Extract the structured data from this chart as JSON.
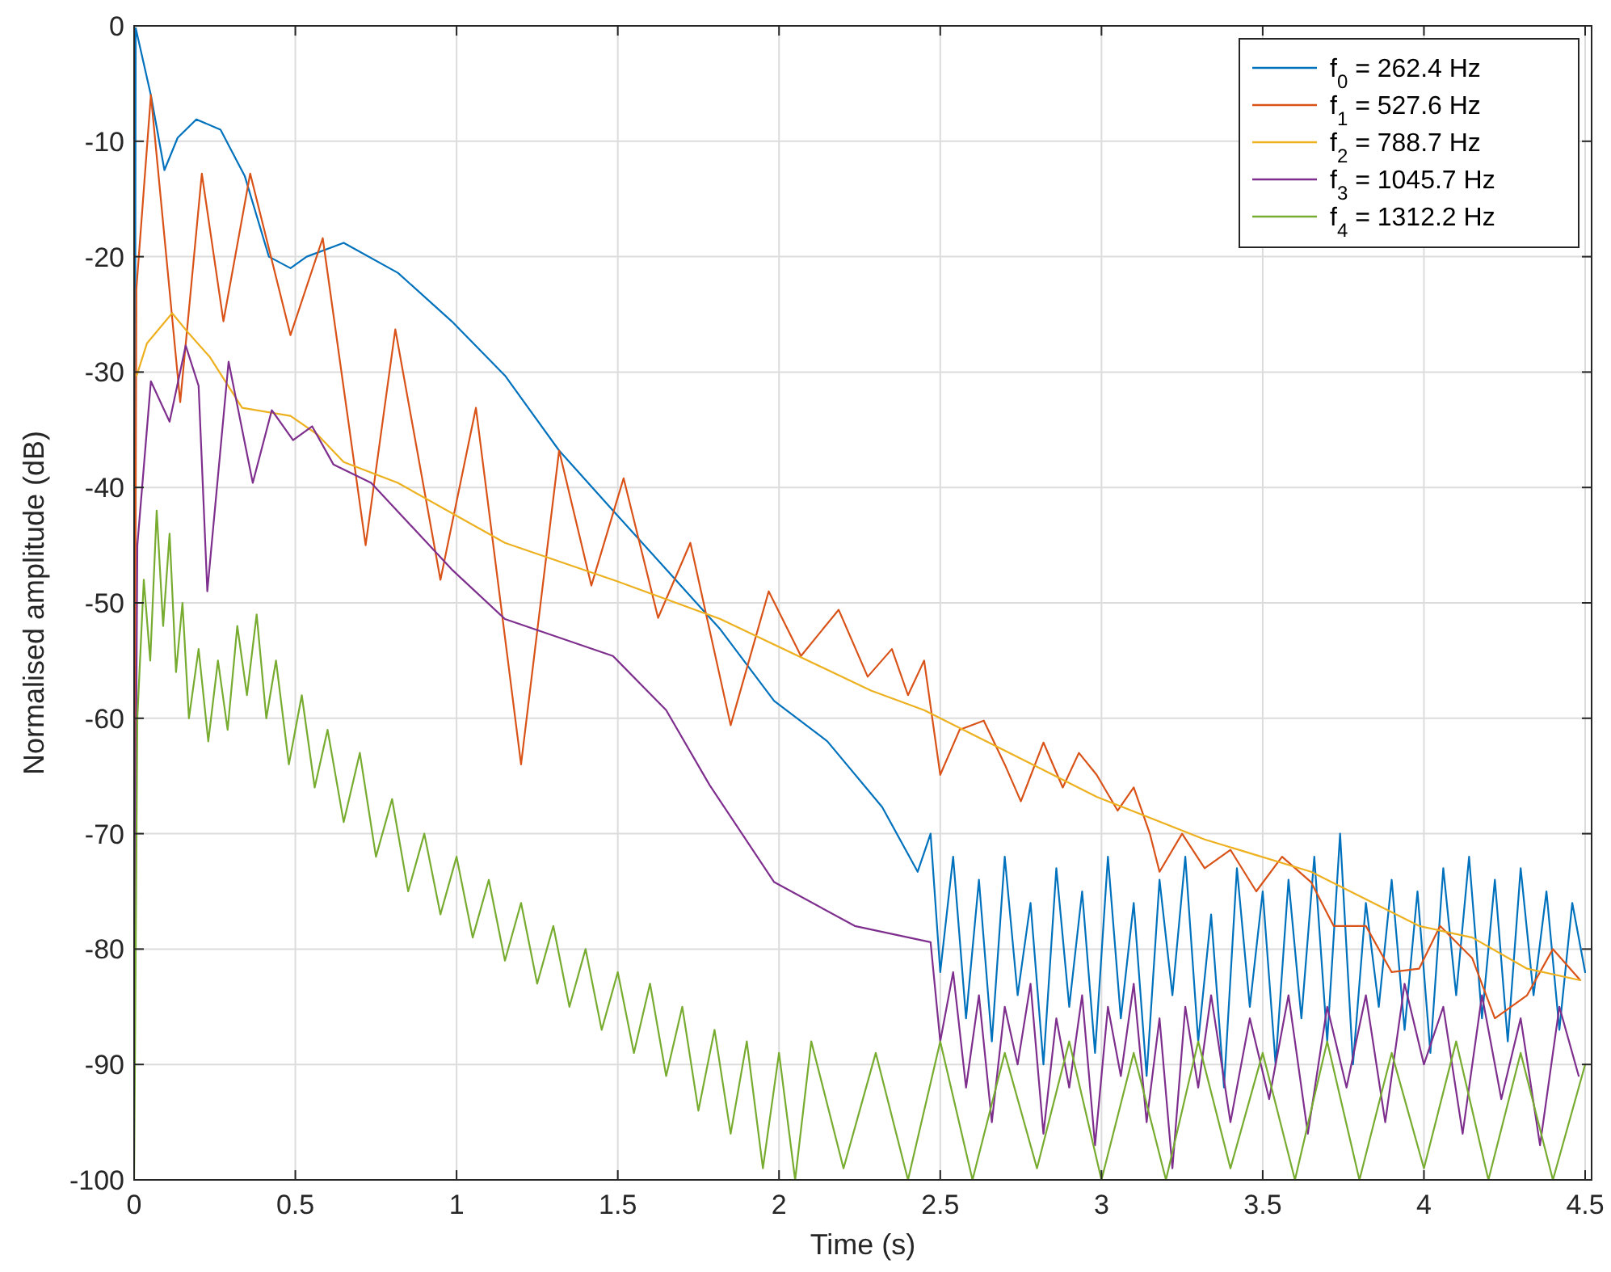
{
  "chart_data": {
    "type": "line",
    "xlabel": "Time (s)",
    "ylabel": "Normalised amplitude (dB)",
    "xlim": [
      0,
      4.52
    ],
    "ylim": [
      -100,
      0
    ],
    "xticks": [
      0,
      0.5,
      1,
      1.5,
      2,
      2.5,
      3,
      3.5,
      4,
      4.5
    ],
    "yticks": [
      -100,
      -90,
      -80,
      -70,
      -60,
      -50,
      -40,
      -30,
      -20,
      -10,
      0
    ],
    "grid": true,
    "legend": "top right",
    "marker": "none",
    "line_style": "solid",
    "series": [
      {
        "name": "f$_{0}$ = 262.4 Hz",
        "color": "#0072bd",
        "x": [
          0,
          0.005,
          0.052,
          0.094,
          0.135,
          0.193,
          0.268,
          0.343,
          0.418,
          0.485,
          0.535,
          0.65,
          0.818,
          0.985,
          1.15,
          1.318,
          1.485,
          1.65,
          1.818,
          1.985,
          2.15,
          2.32,
          2.43,
          2.47,
          2.5,
          2.54,
          2.58,
          2.62,
          2.66,
          2.7,
          2.74,
          2.78,
          2.82,
          2.86,
          2.9,
          2.94,
          2.98,
          3.02,
          3.06,
          3.1,
          3.14,
          3.18,
          3.22,
          3.26,
          3.3,
          3.34,
          3.38,
          3.42,
          3.46,
          3.5,
          3.54,
          3.58,
          3.62,
          3.66,
          3.7,
          3.74,
          3.78,
          3.82,
          3.86,
          3.9,
          3.94,
          3.98,
          4.02,
          4.06,
          4.1,
          4.14,
          4.18,
          4.22,
          4.26,
          4.3,
          4.34,
          4.38,
          4.42,
          4.46,
          4.5
        ],
        "values": [
          -80,
          -0.2,
          -6,
          -12.5,
          -9.7,
          -8.1,
          -9,
          -13,
          -20,
          -21,
          -20,
          -18.8,
          -21.4,
          -25.6,
          -30.3,
          -36.8,
          -42,
          -47.1,
          -52.3,
          -58.5,
          -62,
          -67.7,
          -73.3,
          -70,
          -82,
          -72,
          -86,
          -74,
          -88,
          -72,
          -84,
          -76,
          -90,
          -73,
          -85,
          -75,
          -89,
          -72,
          -86,
          -76,
          -91,
          -74,
          -84,
          -72,
          -88,
          -77,
          -92,
          -73,
          -85,
          -75,
          -90,
          -74,
          -86,
          -72,
          -88,
          -70,
          -90,
          -76,
          -85,
          -74,
          -87,
          -75,
          -89,
          -73,
          -84,
          -72,
          -86,
          -74,
          -88,
          -73,
          -84,
          -75,
          -87,
          -76,
          -82
        ]
      },
      {
        "name": "f$_{1}$ = 527.6 Hz",
        "color": "#d95319",
        "x": [
          0,
          0.007,
          0.052,
          0.143,
          0.21,
          0.277,
          0.36,
          0.485,
          0.585,
          0.718,
          0.81,
          0.95,
          1.06,
          1.2,
          1.318,
          1.418,
          1.518,
          1.625,
          1.725,
          1.85,
          1.968,
          2.068,
          2.185,
          2.275,
          2.35,
          2.4,
          2.45,
          2.5,
          2.56,
          2.635,
          2.7,
          2.75,
          2.82,
          2.88,
          2.93,
          2.985,
          3.05,
          3.1,
          3.15,
          3.18,
          3.25,
          3.32,
          3.4,
          3.48,
          3.56,
          3.65,
          3.72,
          3.82,
          3.9,
          3.985,
          4.05,
          4.15,
          4.22,
          4.32,
          4.4,
          4.485
        ],
        "values": [
          -85,
          -22.8,
          -6,
          -32.6,
          -12.8,
          -25.6,
          -12.8,
          -26.8,
          -18.4,
          -45,
          -26.3,
          -48,
          -33.1,
          -64,
          -36.8,
          -48.5,
          -39.2,
          -51.3,
          -44.8,
          -60.6,
          -49,
          -54.6,
          -50.6,
          -56.4,
          -54,
          -58,
          -55,
          -64.9,
          -61,
          -60.2,
          -64,
          -67.2,
          -62.1,
          -66,
          -63,
          -64.9,
          -68,
          -66,
          -70,
          -73.3,
          -70,
          -73,
          -71.4,
          -75,
          -72,
          -74.2,
          -78,
          -78,
          -82,
          -81.7,
          -78,
          -80.8,
          -86,
          -84,
          -80,
          -82.7
        ]
      },
      {
        "name": "f$_{2}$ = 788.7 Hz",
        "color": "#edb120",
        "x": [
          0.008,
          0.04,
          0.118,
          0.168,
          0.235,
          0.335,
          0.485,
          0.568,
          0.65,
          0.818,
          1.15,
          1.485,
          1.818,
          2.285,
          2.45,
          2.985,
          3.32,
          3.65,
          3.985,
          4.15,
          4.32,
          4.485
        ],
        "values": [
          -30.3,
          -27.5,
          -24.9,
          -26.6,
          -28.7,
          -33.1,
          -33.8,
          -35.4,
          -37.8,
          -39.6,
          -44.8,
          -48,
          -51.4,
          -57.6,
          -59.3,
          -66.8,
          -70.5,
          -73.3,
          -78,
          -79,
          -81.7,
          -82.7
        ]
      },
      {
        "name": "f$_{3}$ = 1045.7 Hz",
        "color": "#7e2f8e",
        "x": [
          0,
          0.01,
          0.052,
          0.11,
          0.16,
          0.2,
          0.227,
          0.293,
          0.368,
          0.427,
          0.493,
          0.552,
          0.618,
          0.735,
          0.985,
          1.15,
          1.485,
          1.65,
          1.785,
          1.985,
          2.235,
          2.47,
          2.5,
          2.54,
          2.58,
          2.62,
          2.66,
          2.7,
          2.74,
          2.78,
          2.82,
          2.86,
          2.9,
          2.94,
          2.98,
          3.02,
          3.06,
          3.1,
          3.14,
          3.18,
          3.22,
          3.26,
          3.3,
          3.34,
          3.4,
          3.46,
          3.52,
          3.58,
          3.64,
          3.7,
          3.76,
          3.82,
          3.88,
          3.94,
          4.0,
          4.06,
          4.12,
          4.18,
          4.24,
          4.3,
          4.36,
          4.42,
          4.48
        ],
        "values": [
          -90,
          -45,
          -30.8,
          -34.3,
          -27.7,
          -31.2,
          -49,
          -29.1,
          -39.6,
          -33.3,
          -35.9,
          -34.7,
          -38,
          -39.6,
          -47.1,
          -51.4,
          -54.6,
          -59.3,
          -65.8,
          -74.2,
          -78,
          -79.4,
          -88,
          -82,
          -92,
          -84,
          -95,
          -85,
          -90,
          -83,
          -96,
          -86,
          -92,
          -84,
          -97,
          -85,
          -91,
          -83,
          -95,
          -86,
          -99,
          -85,
          -92,
          -84,
          -95,
          -86,
          -93,
          -84,
          -96,
          -85,
          -92,
          -84,
          -95,
          -83,
          -90,
          -85,
          -96,
          -84,
          -93,
          -86,
          -97,
          -85,
          -91
        ]
      },
      {
        "name": "f$_{4}$ = 1312.2 Hz",
        "color": "#77ac30",
        "x": [
          0,
          0.01,
          0.03,
          0.05,
          0.07,
          0.09,
          0.11,
          0.13,
          0.15,
          0.17,
          0.2,
          0.23,
          0.26,
          0.29,
          0.32,
          0.35,
          0.38,
          0.41,
          0.44,
          0.48,
          0.52,
          0.56,
          0.6,
          0.65,
          0.7,
          0.75,
          0.8,
          0.85,
          0.9,
          0.95,
          1.0,
          1.05,
          1.1,
          1.15,
          1.2,
          1.25,
          1.3,
          1.35,
          1.4,
          1.45,
          1.5,
          1.55,
          1.6,
          1.65,
          1.7,
          1.75,
          1.8,
          1.85,
          1.9,
          1.95,
          2.0,
          2.05,
          2.1,
          2.2,
          2.3,
          2.4,
          2.5,
          2.6,
          2.7,
          2.8,
          2.9,
          3.0,
          3.1,
          3.2,
          3.3,
          3.4,
          3.5,
          3.6,
          3.7,
          3.8,
          3.9,
          4.0,
          4.1,
          4.2,
          4.3,
          4.4,
          4.5
        ],
        "values": [
          -100,
          -60,
          -48,
          -55,
          -42,
          -52,
          -44,
          -56,
          -50,
          -60,
          -54,
          -62,
          -55,
          -61,
          -52,
          -58,
          -51,
          -60,
          -55,
          -64,
          -58,
          -66,
          -61,
          -69,
          -63,
          -72,
          -67,
          -75,
          -70,
          -77,
          -72,
          -79,
          -74,
          -81,
          -76,
          -83,
          -78,
          -85,
          -80,
          -87,
          -82,
          -89,
          -83,
          -91,
          -85,
          -94,
          -87,
          -96,
          -88,
          -99,
          -89,
          -100,
          -88,
          -99,
          -89,
          -100,
          -88,
          -100,
          -89,
          -99,
          -88,
          -100,
          -89,
          -100,
          -88,
          -99,
          -89,
          -100,
          -88,
          -100,
          -89,
          -99,
          -88,
          -100,
          -89,
          -100,
          -90
        ]
      }
    ]
  }
}
